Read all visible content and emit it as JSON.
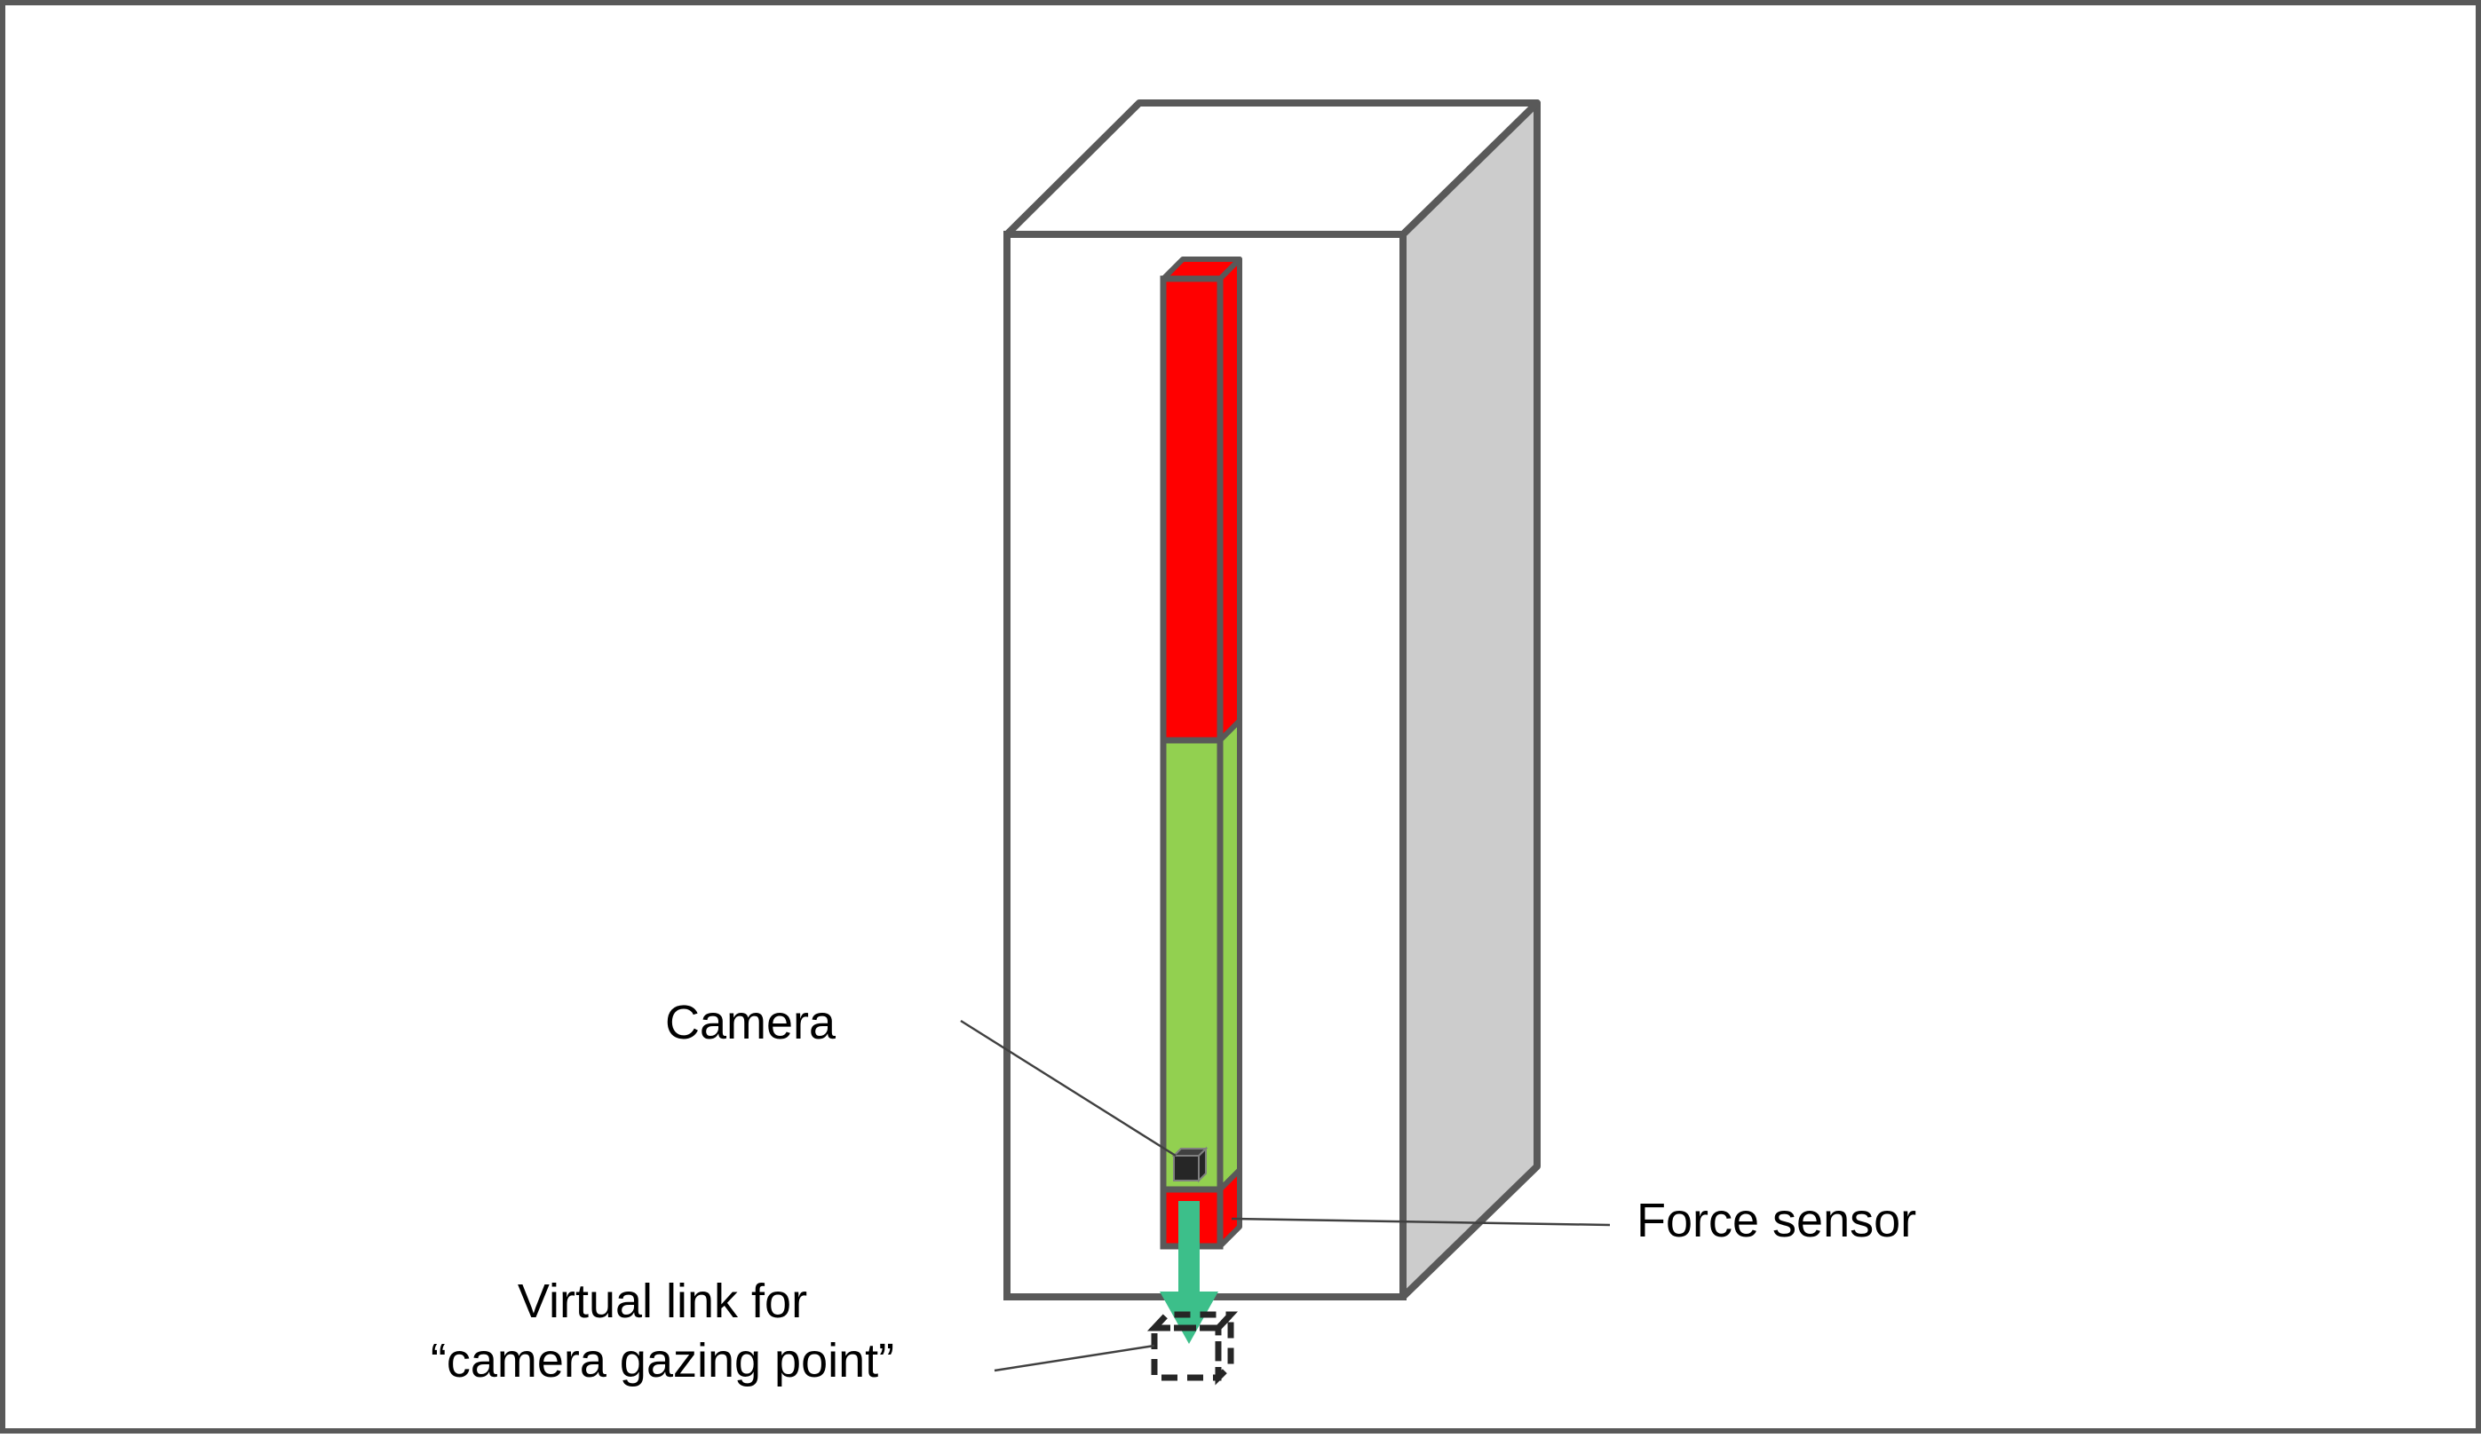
{
  "labels": {
    "camera": "Camera",
    "force_sensor": "Force sensor",
    "virtual_link_line1": "Virtual link for",
    "virtual_link_line2": "“camera gazing point”"
  },
  "colors": {
    "outline": "#595959",
    "box_front": "#ffffff",
    "box_side": "#cccccc",
    "link_red": "#ff0000",
    "link_green": "#92d050",
    "arrow": "#3cbf8a",
    "camera": "#262626",
    "background": "#ffffff"
  },
  "components": [
    "outer-box",
    "upper-link",
    "middle-link",
    "force-sensor",
    "camera",
    "gaze-arrow",
    "virtual-link"
  ]
}
